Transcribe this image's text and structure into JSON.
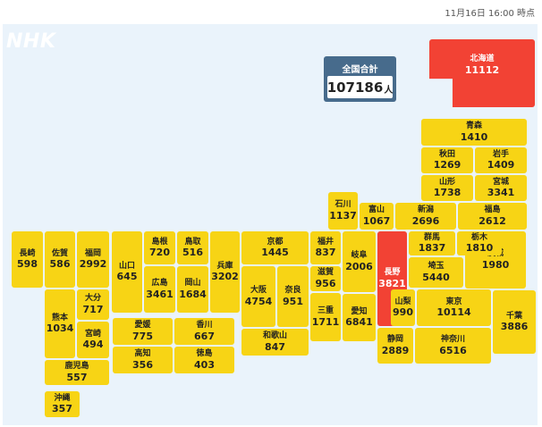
{
  "timestamp": "11月16日 16:00 時点",
  "logo": "NHK",
  "total": {
    "label": "全国合計",
    "value": "107186",
    "unit": "人"
  },
  "colors": {
    "highlight": "#f24234",
    "normal": "#f7d415",
    "total_box": "#476b8c",
    "background": "#eaf3fb"
  },
  "prefectures": [
    {
      "id": "hokkaido",
      "name": "北海道",
      "count": "11112",
      "highlight": true
    },
    {
      "id": "aomori",
      "name": "青森",
      "count": "1410"
    },
    {
      "id": "akita",
      "name": "秋田",
      "count": "1269"
    },
    {
      "id": "iwate",
      "name": "岩手",
      "count": "1409"
    },
    {
      "id": "yamagata",
      "name": "山形",
      "count": "1738"
    },
    {
      "id": "miyagi",
      "name": "宮城",
      "count": "3341"
    },
    {
      "id": "ishikawa",
      "name": "石川",
      "count": "1137"
    },
    {
      "id": "toyama",
      "name": "富山",
      "count": "1067"
    },
    {
      "id": "niigata",
      "name": "新潟",
      "count": "2696"
    },
    {
      "id": "fukushima",
      "name": "福島",
      "count": "2612"
    },
    {
      "id": "nagasaki",
      "name": "長崎",
      "count": "598"
    },
    {
      "id": "saga",
      "name": "佐賀",
      "count": "586"
    },
    {
      "id": "fukuoka",
      "name": "福岡",
      "count": "2992"
    },
    {
      "id": "yamaguchi",
      "name": "山口",
      "count": "645"
    },
    {
      "id": "shimane",
      "name": "島根",
      "count": "720"
    },
    {
      "id": "tottori",
      "name": "鳥取",
      "count": "516"
    },
    {
      "id": "hiroshima",
      "name": "広島",
      "count": "3461"
    },
    {
      "id": "okayama",
      "name": "岡山",
      "count": "1684"
    },
    {
      "id": "hyogo",
      "name": "兵庫",
      "count": "3202"
    },
    {
      "id": "kyoto",
      "name": "京都",
      "count": "1445"
    },
    {
      "id": "fukui",
      "name": "福井",
      "count": "837"
    },
    {
      "id": "shiga",
      "name": "滋賀",
      "count": "956"
    },
    {
      "id": "gifu",
      "name": "岐阜",
      "count": "2006"
    },
    {
      "id": "nagano",
      "name": "長野",
      "count": "3821",
      "highlight": true
    },
    {
      "id": "gunma",
      "name": "群馬",
      "count": "1837"
    },
    {
      "id": "tochigi",
      "name": "栃木",
      "count": "1810"
    },
    {
      "id": "ibaraki",
      "name": "茨城",
      "count": "1980"
    },
    {
      "id": "saitama",
      "name": "埼玉",
      "count": "5440"
    },
    {
      "id": "oita",
      "name": "大分",
      "count": "717"
    },
    {
      "id": "kumamoto",
      "name": "熊本",
      "count": "1034"
    },
    {
      "id": "miyazaki",
      "name": "宮崎",
      "count": "494"
    },
    {
      "id": "osaka",
      "name": "大阪",
      "count": "4754"
    },
    {
      "id": "nara",
      "name": "奈良",
      "count": "951"
    },
    {
      "id": "mie",
      "name": "三重",
      "count": "1711"
    },
    {
      "id": "aichi",
      "name": "愛知",
      "count": "6841"
    },
    {
      "id": "yamanashi",
      "name": "山梨",
      "count": "990"
    },
    {
      "id": "tokyo",
      "name": "東京",
      "count": "10114"
    },
    {
      "id": "chiba",
      "name": "千葉",
      "count": "3886"
    },
    {
      "id": "ehime",
      "name": "愛媛",
      "count": "775"
    },
    {
      "id": "kagawa",
      "name": "香川",
      "count": "667"
    },
    {
      "id": "kochi",
      "name": "高知",
      "count": "356"
    },
    {
      "id": "tokushima",
      "name": "徳島",
      "count": "403"
    },
    {
      "id": "wakayama",
      "name": "和歌山",
      "count": "847"
    },
    {
      "id": "shizuoka",
      "name": "静岡",
      "count": "2889"
    },
    {
      "id": "kanagawa",
      "name": "神奈川",
      "count": "6516"
    },
    {
      "id": "kagoshima",
      "name": "鹿児島",
      "count": "557"
    },
    {
      "id": "okinawa",
      "name": "沖縄",
      "count": "357"
    }
  ]
}
